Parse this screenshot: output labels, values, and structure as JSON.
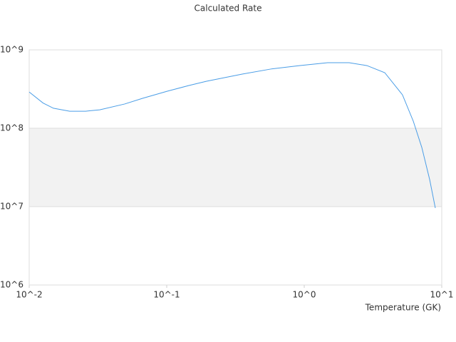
{
  "chart_data": {
    "type": "line",
    "title": "Calculated Rate",
    "x_label": "Temperature (GK)",
    "log_x": true,
    "log_y": true,
    "grid": true,
    "xlim": [
      0.01,
      10
    ],
    "ylim": [
      1000000,
      1000000000
    ],
    "xticks": [
      {
        "value": 0.01,
        "label": "10^-2"
      },
      {
        "value": 0.1,
        "label": "10^-1"
      },
      {
        "value": 1,
        "label": "10^0"
      },
      {
        "value": 10,
        "label": "10^1"
      }
    ],
    "yticks": [
      {
        "value": 1000000,
        "label": "10^6"
      },
      {
        "value": 10000000,
        "label": "10^7"
      },
      {
        "value": 100000000,
        "label": "10^8"
      },
      {
        "value": 1000000000,
        "label": "10^9"
      }
    ],
    "x": [
      0.01,
      0.0126,
      0.015,
      0.0197,
      0.0257,
      0.0326,
      0.0495,
      0.0667,
      0.101,
      0.145,
      0.195,
      0.354,
      0.57,
      0.92,
      1.48,
      2.12,
      2.86,
      3.85,
      5.18,
      6.21,
      7.16,
      8.17,
      8.98
    ],
    "series": [
      {
        "color": "#4a9de6",
        "values": [
          290000000,
          210000000,
          180000000,
          165000000,
          165000000,
          172000000,
          204000000,
          241000000,
          297000000,
          351000000,
          398000000,
          491000000,
          569000000,
          630000000,
          686000000,
          686000000,
          630000000,
          512000000,
          267000000,
          123000000,
          56900000,
          22100000,
          9600000
        ]
      }
    ]
  }
}
